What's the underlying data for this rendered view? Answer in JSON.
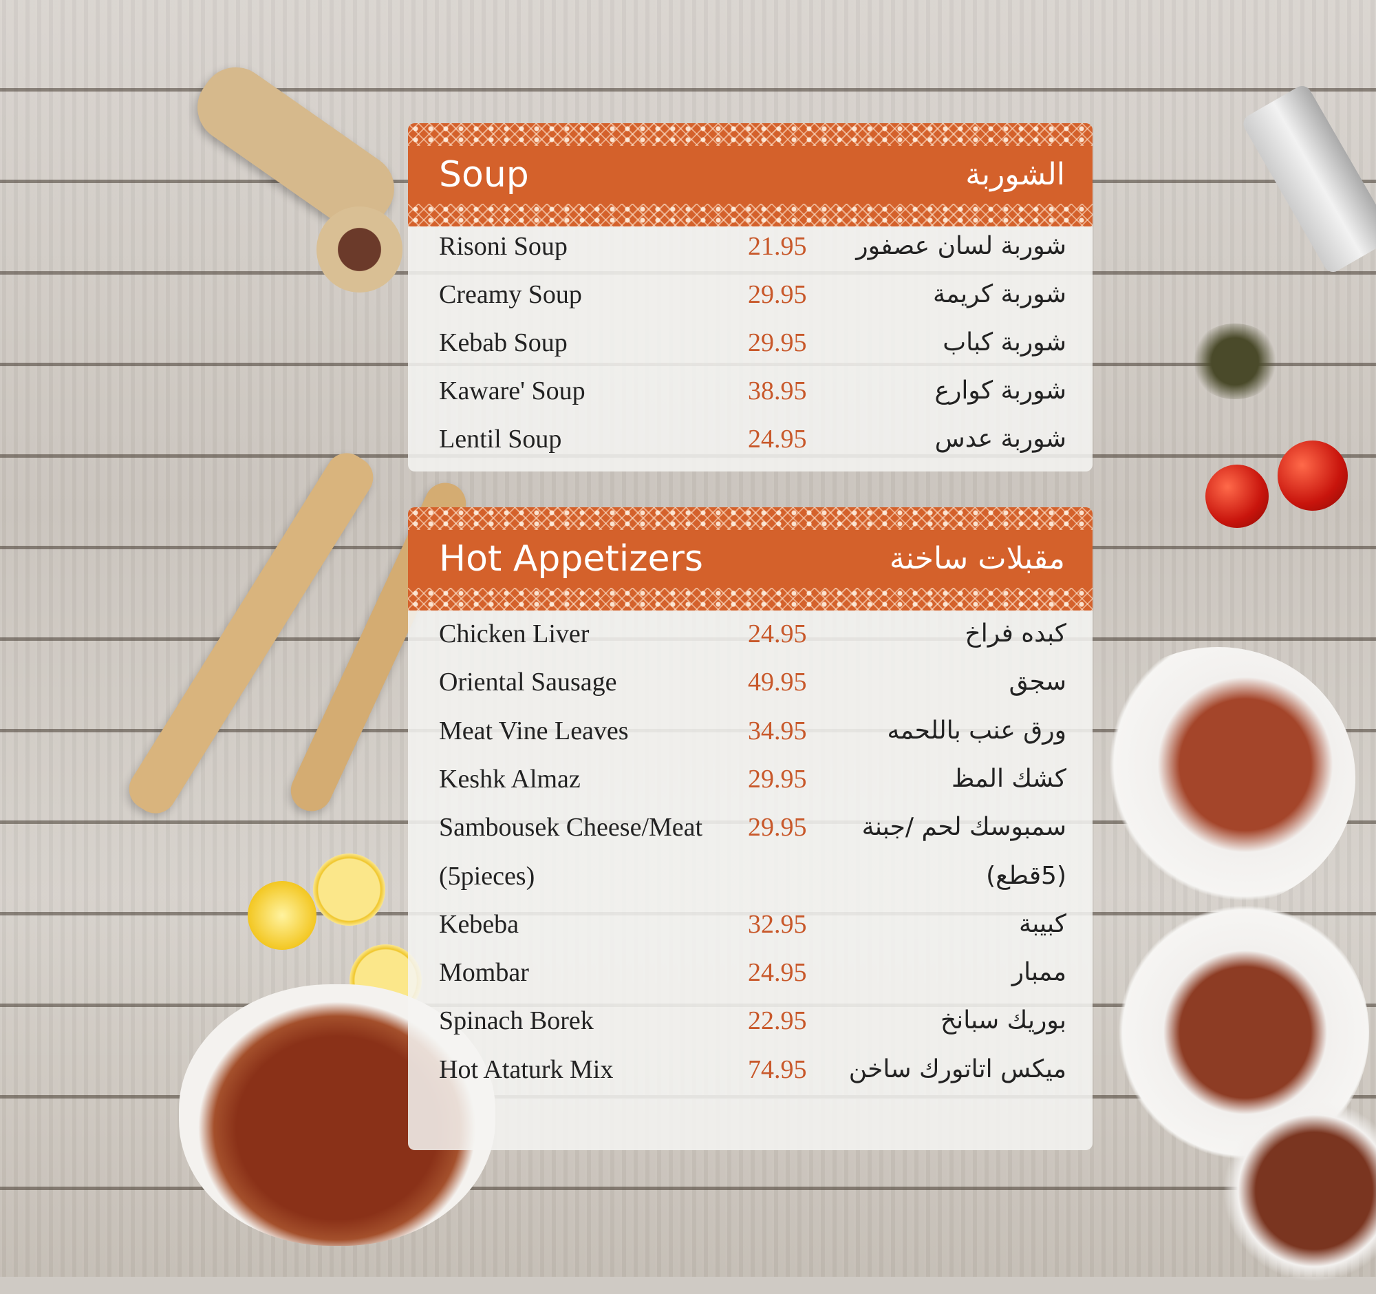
{
  "colors": {
    "header": "#d4612b",
    "price": "#c8582a",
    "text": "#222222"
  },
  "sections": [
    {
      "title_en": "Soup",
      "title_ar": "الشوربة",
      "items": [
        {
          "en": "Risoni Soup",
          "price": "21.95",
          "ar": "شوربة لسان عصفور"
        },
        {
          "en": "Creamy Soup",
          "price": "29.95",
          "ar": "شوربة كريمة"
        },
        {
          "en": "Kebab Soup",
          "price": "29.95",
          "ar": "شوربة كباب"
        },
        {
          "en": "Kaware' Soup",
          "price": "38.95",
          "ar": "شوربة كوارع"
        },
        {
          "en": "Lentil Soup",
          "price": "24.95",
          "ar": "شوربة عدس"
        }
      ]
    },
    {
      "title_en": "Hot Appetizers",
      "title_ar": "مقبلات ساخنة",
      "items": [
        {
          "en": "Chicken Liver",
          "price": "24.95",
          "ar": "كبده فراخ"
        },
        {
          "en": "Oriental Sausage",
          "price": "49.95",
          "ar": "سجق"
        },
        {
          "en": "Meat Vine Leaves",
          "price": "34.95",
          "ar": "ورق عنب باللحمه"
        },
        {
          "en": "Keshk Almaz",
          "price": "29.95",
          "ar": "كشك المظ"
        },
        {
          "en": "Sambousek Cheese/Meat",
          "price": "29.95",
          "ar": "سمبوسك لحم /جبنة"
        },
        {
          "en": "(5pieces)",
          "price": "",
          "ar": "(5قطع)"
        },
        {
          "en": "Kebeba",
          "price": "32.95",
          "ar": "كبيبة"
        },
        {
          "en": "Mombar",
          "price": "24.95",
          "ar": "ممبار"
        },
        {
          "en": "Spinach Borek",
          "price": "22.95",
          "ar": "بوريك سبانخ"
        },
        {
          "en": "Hot Ataturk Mix",
          "price": "74.95",
          "ar": "ميكس اتاتورك ساخن"
        }
      ]
    }
  ]
}
